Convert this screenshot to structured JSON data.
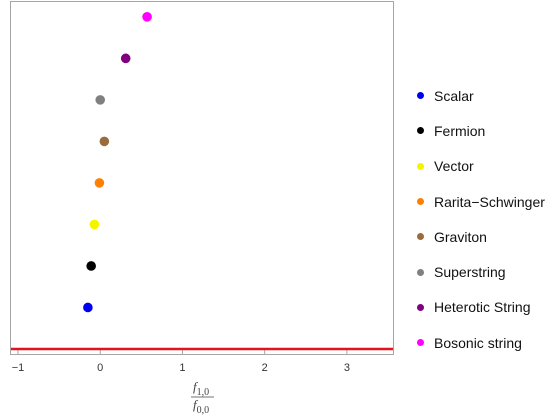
{
  "chart_data": {
    "type": "scatter",
    "xlim": [
      -1,
      3.5
    ],
    "x_ticks": [
      -1,
      0,
      1,
      2,
      3
    ],
    "x_tick_labels": [
      "−1",
      "0",
      "1",
      "2",
      "3"
    ],
    "xlabel": {
      "numerator_base": "f",
      "numerator_sub": "1,0",
      "denominator_base": "f",
      "denominator_sub": "0,0"
    },
    "ylabel": "",
    "y_axis_labeled": false,
    "grid": false,
    "frame": true,
    "legend_position": "right",
    "reference_line": {
      "y": 0,
      "color": "#e0141e"
    },
    "series": [
      {
        "name": "Scalar",
        "color": "#0000ee",
        "x": -0.15,
        "y": 1
      },
      {
        "name": "Fermion",
        "color": "#000000",
        "x": -0.11,
        "y": 2
      },
      {
        "name": "Vector",
        "color": "#f4f400",
        "x": -0.07,
        "y": 3
      },
      {
        "name": "Rarita−Schwinger",
        "color": "#ff8000",
        "x": -0.01,
        "y": 4
      },
      {
        "name": "Graviton",
        "color": "#9a6b3c",
        "x": 0.05,
        "y": 5
      },
      {
        "name": "Superstring",
        "color": "#808080",
        "x": 0.0,
        "y": 6
      },
      {
        "name": "Heterotic String",
        "color": "#800080",
        "x": 0.31,
        "y": 7
      },
      {
        "name": "Bosonic string",
        "color": "#ff00ff",
        "x": 0.57,
        "y": 8
      }
    ]
  }
}
